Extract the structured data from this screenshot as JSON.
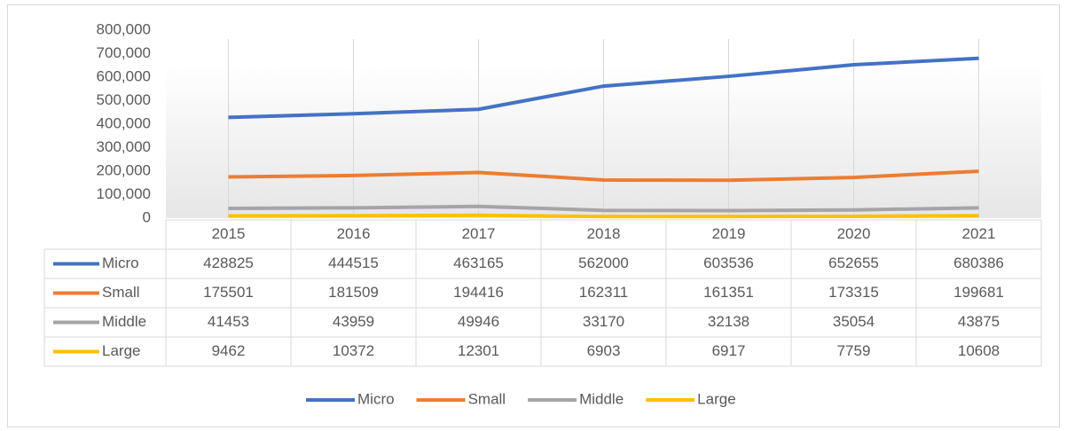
{
  "chart_data": {
    "type": "line",
    "categories": [
      "2015",
      "2016",
      "2017",
      "2018",
      "2019",
      "2020",
      "2021"
    ],
    "series": [
      {
        "name": "Micro",
        "color": "#4472c4",
        "values": [
          428825,
          444515,
          463165,
          562000,
          603536,
          652655,
          680386
        ]
      },
      {
        "name": "Small",
        "color": "#ed7d31",
        "values": [
          175501,
          181509,
          194416,
          162311,
          161351,
          173315,
          199681
        ]
      },
      {
        "name": "Middle",
        "color": "#a5a5a5",
        "values": [
          41453,
          43959,
          49946,
          33170,
          32138,
          35054,
          43875
        ]
      },
      {
        "name": "Large",
        "color": "#ffc000",
        "values": [
          9462,
          10372,
          12301,
          6903,
          6917,
          7759,
          10608
        ]
      }
    ],
    "ylim": [
      0,
      800000
    ],
    "yticks": [
      0,
      {
        "value": 100000,
        "label": "100,000"
      },
      {
        "value": 200000,
        "label": "200,000"
      },
      {
        "value": 300000,
        "label": "300,000"
      },
      {
        "value": 400000,
        "label": "400,000"
      },
      {
        "value": 500000,
        "label": "500,000"
      },
      {
        "value": 600000,
        "label": "600,000"
      },
      {
        "value": 700000,
        "label": "700,000"
      },
      {
        "value": 800000,
        "label": "800,000"
      }
    ],
    "legend": "bottom"
  }
}
